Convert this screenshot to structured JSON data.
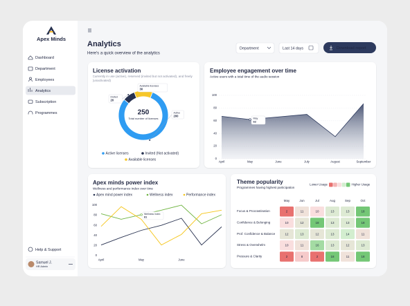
{
  "sidebar": {
    "brand": "Apex Minds",
    "nav": [
      "Dashboard",
      "Department",
      "Employees",
      "Analytics",
      "Subscription",
      "Programmes"
    ],
    "active": "Analytics",
    "help": "Help & Support",
    "user": {
      "name": "Samuel J.",
      "role": "HR Admin"
    }
  },
  "header": {
    "title": "Analytics",
    "subtitle": "Here's a quick overview of the analytics",
    "filters": [
      "Department",
      "Last 14 days"
    ],
    "button": "Download report"
  },
  "chart_data": [
    {
      "type": "pie",
      "title": "License activation",
      "subtitle": "Currently in use (active), reserved (invited but not activated), and freely (unactivated)",
      "total": 250,
      "total_label": "Total number of licenses",
      "categories": [
        "Active licenses",
        "Invited (Not activated)",
        "Available licenses"
      ],
      "callout_labels": [
        "Active",
        "Invited",
        "Available licenses"
      ],
      "values": [
        200,
        20,
        30
      ],
      "colors": [
        "#2f9cf2",
        "#27314f",
        "#f6c629"
      ],
      "hole": true
    },
    {
      "type": "area",
      "title": "Employee engagement over time",
      "subtitle": "Active users with a total time of the audio session",
      "categories": [
        "April",
        "May",
        "June",
        "July",
        "August",
        "September"
      ],
      "values": [
        67,
        62,
        66,
        70,
        35,
        87
      ],
      "color": "#2d3a5e",
      "ylim": [
        0,
        100
      ],
      "yticks": [
        0,
        20,
        40,
        60,
        80,
        100
      ],
      "grid": true,
      "tooltip": "May"
    },
    {
      "type": "line",
      "title": "Apex minds power index",
      "subtitle": "Wellness and performance index over time",
      "categories": [
        "April",
        null,
        "May",
        null,
        "June",
        null,
        null
      ],
      "series": [
        {
          "name": "Apex mind power index",
          "color": "#27314f",
          "values": [
            21,
            36,
            50,
            60,
            74,
            21,
            57
          ]
        },
        {
          "name": "Wellness index",
          "color": "#6db33f",
          "values": [
            83,
            72,
            81,
            90,
            100,
            63,
            81
          ]
        },
        {
          "name": "Performance index",
          "color": "#f5c518",
          "values": [
            58,
            97,
            72,
            21,
            42,
            83,
            90
          ]
        }
      ],
      "ylim": [
        0,
        100
      ],
      "yticks": [
        0,
        20,
        40,
        60,
        80,
        100
      ],
      "grid": false,
      "tooltip": {
        "series": "Wellness index",
        "category": "May"
      }
    },
    {
      "type": "heatmap",
      "title": "Theme popularity",
      "subtitle": "Programmes having highest participation",
      "x": [
        "May",
        "Jun",
        "Jul",
        "Aug",
        "Sep",
        "Oct"
      ],
      "y": [
        "Focus & Procrastination",
        "Confidence & Belonging",
        "Prof. Confidence & Balance",
        "Stress & Overwhelm",
        "Pressure & Clarity"
      ],
      "values": [
        [
          2,
          11,
          10,
          13,
          13,
          18
        ],
        [
          10,
          12,
          18,
          13,
          13,
          18
        ],
        [
          12,
          13,
          12,
          13,
          14,
          11
        ],
        [
          10,
          11,
          16,
          13,
          12,
          13
        ],
        [
          2,
          8,
          2,
          18,
          11,
          18
        ]
      ],
      "colors": [
        "#e8716f",
        "#f3b5b5",
        "#f9dede",
        "#d3eecf",
        "#74c776"
      ],
      "legend_low": "Lower Usage",
      "legend_high": "Higher Usage"
    }
  ]
}
